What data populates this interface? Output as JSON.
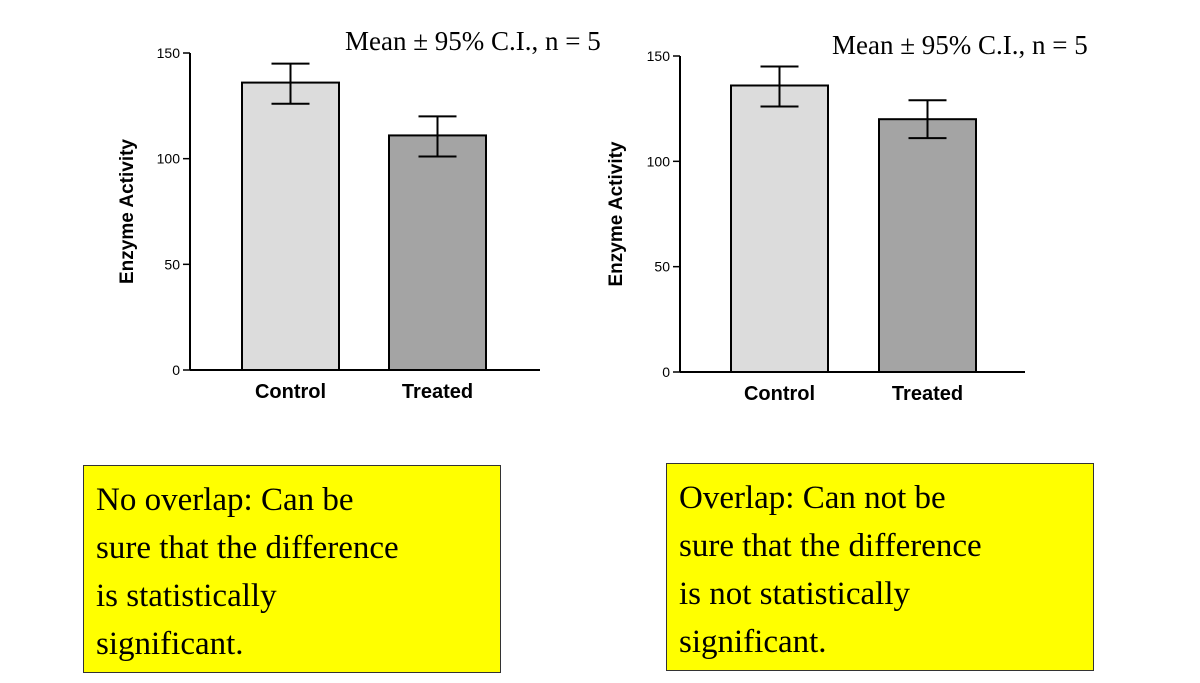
{
  "chart_data": [
    {
      "type": "bar",
      "title": "Mean ± 95% C.I., n = 5",
      "categories": [
        "Control",
        "Treated"
      ],
      "values": [
        136,
        111
      ],
      "ci": [
        [
          126,
          145
        ],
        [
          101,
          120
        ]
      ],
      "ylabel": "Enzyme Activity",
      "xlabel": "",
      "ylim": [
        0,
        150
      ],
      "yticks": [
        0,
        50,
        100,
        150
      ],
      "colors": [
        "#dcdcdc",
        "#a4a4a4"
      ]
    },
    {
      "type": "bar",
      "title": "Mean ± 95% C.I., n = 5",
      "categories": [
        "Control",
        "Treated"
      ],
      "values": [
        136,
        120
      ],
      "ci": [
        [
          126,
          145
        ],
        [
          111,
          129
        ]
      ],
      "ylabel": "Enzyme Activity",
      "xlabel": "",
      "ylim": [
        0,
        150
      ],
      "yticks": [
        0,
        50,
        100,
        150
      ],
      "colors": [
        "#dcdcdc",
        "#a4a4a4"
      ]
    }
  ],
  "notes": {
    "left": [
      "No overlap:  Can be",
      "sure that the difference",
      "is statistically",
      "significant."
    ],
    "right": [
      "Overlap:  Can not be",
      "sure that the difference",
      "is not statistically",
      "significant."
    ]
  }
}
